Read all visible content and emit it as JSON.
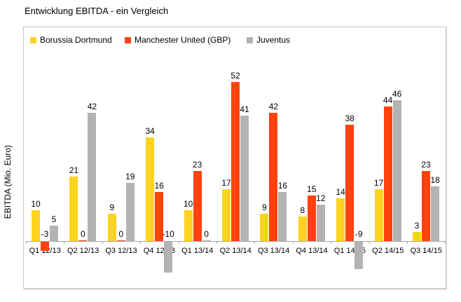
{
  "title": "Entwicklung EBITDA - ein Vergleich",
  "axis_colors": {
    "frame": "#c3c3c3",
    "axis": "#a5a5a5"
  },
  "chart_data": {
    "type": "bar",
    "title": "Entwicklung EBITDA - ein Vergleich",
    "xlabel": "",
    "ylabel": "EBITDA (Mio. Euro)",
    "categories": [
      "Q1 12/13",
      "Q2 12/13",
      "Q3 12/13",
      "Q4 12/13",
      "Q1 13/14",
      "Q2 13/14",
      "Q3 13/14",
      "Q4 13/14",
      "Q1 14/15",
      "Q2 14/15",
      "Q3 14/15"
    ],
    "series": [
      {
        "name": "Borussia Dortmund",
        "color": "#FFD320",
        "values": [
          10,
          21,
          9,
          34,
          10,
          17,
          9,
          8,
          14,
          17,
          3
        ]
      },
      {
        "name": "Manchester United (GBP)",
        "color": "#FF420E",
        "values": [
          -3,
          0,
          0,
          16,
          23,
          52,
          42,
          15,
          38,
          44,
          23
        ]
      },
      {
        "name": "Juventus",
        "color": "#B3B3B3",
        "values": [
          5,
          42,
          19,
          -10,
          0,
          41,
          16,
          12,
          -9,
          46,
          18
        ]
      }
    ],
    "ylim": [
      -15,
      60
    ],
    "grid": false,
    "legend_position": "top-left",
    "data_labels": true,
    "y_tick_labels_visible": false
  }
}
